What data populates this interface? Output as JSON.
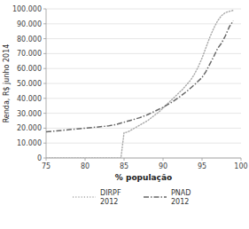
{
  "chart_data": {
    "type": "line",
    "title": "",
    "xlabel": "% população",
    "ylabel": "Renda, R$ junho 2014",
    "xlim": [
      75,
      100
    ],
    "ylim": [
      0,
      100000
    ],
    "xticks": [
      75,
      80,
      85,
      90,
      95,
      100
    ],
    "yticks": [
      0,
      {
        "value": 10000,
        "label": "10.000"
      },
      {
        "value": 20000,
        "label": "20.000"
      },
      {
        "value": 30000,
        "label": "30.000"
      },
      {
        "value": 40000,
        "label": "40.000"
      },
      {
        "value": 50000,
        "label": "50.000"
      },
      {
        "value": 60000,
        "label": "60.000"
      },
      {
        "value": 70000,
        "label": "70.000"
      },
      {
        "value": 80000,
        "label": "80.000"
      },
      {
        "value": 90000,
        "label": "90.000"
      },
      {
        "value": 100000,
        "label": "100.000"
      }
    ],
    "grid": "y",
    "legend": "bottom",
    "series": [
      {
        "name": "DIRPF\n2012",
        "color": "#aaaaaa",
        "line_style": "dotted",
        "x": [
          75,
          76,
          77,
          78,
          79,
          80,
          81,
          82,
          83,
          83.3,
          83.6,
          84,
          84.3,
          84.6,
          85,
          85.3,
          85.6,
          86,
          86.5,
          87,
          87.5,
          88,
          88.5,
          89,
          89.5,
          90,
          90.5,
          91,
          91.5,
          92,
          92.5,
          93,
          93.5,
          94,
          94.5,
          95,
          95.5,
          96,
          96.5,
          97,
          97.5,
          98,
          98.3,
          98.6,
          99
        ],
        "values": [
          0,
          0,
          0,
          0,
          0,
          0,
          0,
          0,
          0,
          0,
          0,
          0,
          0,
          0,
          17000,
          17200,
          17800,
          19000,
          20500,
          22000,
          23500,
          25000,
          27000,
          29000,
          31000,
          33500,
          36000,
          38500,
          41000,
          43500,
          46000,
          49000,
          52000,
          56000,
          61000,
          67000,
          74000,
          81000,
          87000,
          92000,
          95500,
          97500,
          98000,
          98500,
          99000
        ]
      },
      {
        "name": "PNAD\n2012",
        "color": "#666666",
        "line_style": "dashdot",
        "x": [
          75,
          76,
          77,
          78,
          79,
          80,
          81,
          82,
          83,
          84,
          85,
          86,
          87,
          88,
          89,
          90,
          91,
          92,
          93,
          94,
          95,
          95.5,
          96,
          96.5,
          97,
          97.5,
          98,
          98.5,
          99
        ],
        "values": [
          17500,
          18000,
          18500,
          19000,
          19500,
          20000,
          20500,
          21000,
          21500,
          22500,
          24000,
          25500,
          27000,
          29000,
          31500,
          34000,
          37000,
          40500,
          44500,
          49000,
          54000,
          58000,
          63000,
          68000,
          73500,
          77000,
          82000,
          88000,
          92000
        ]
      }
    ]
  }
}
